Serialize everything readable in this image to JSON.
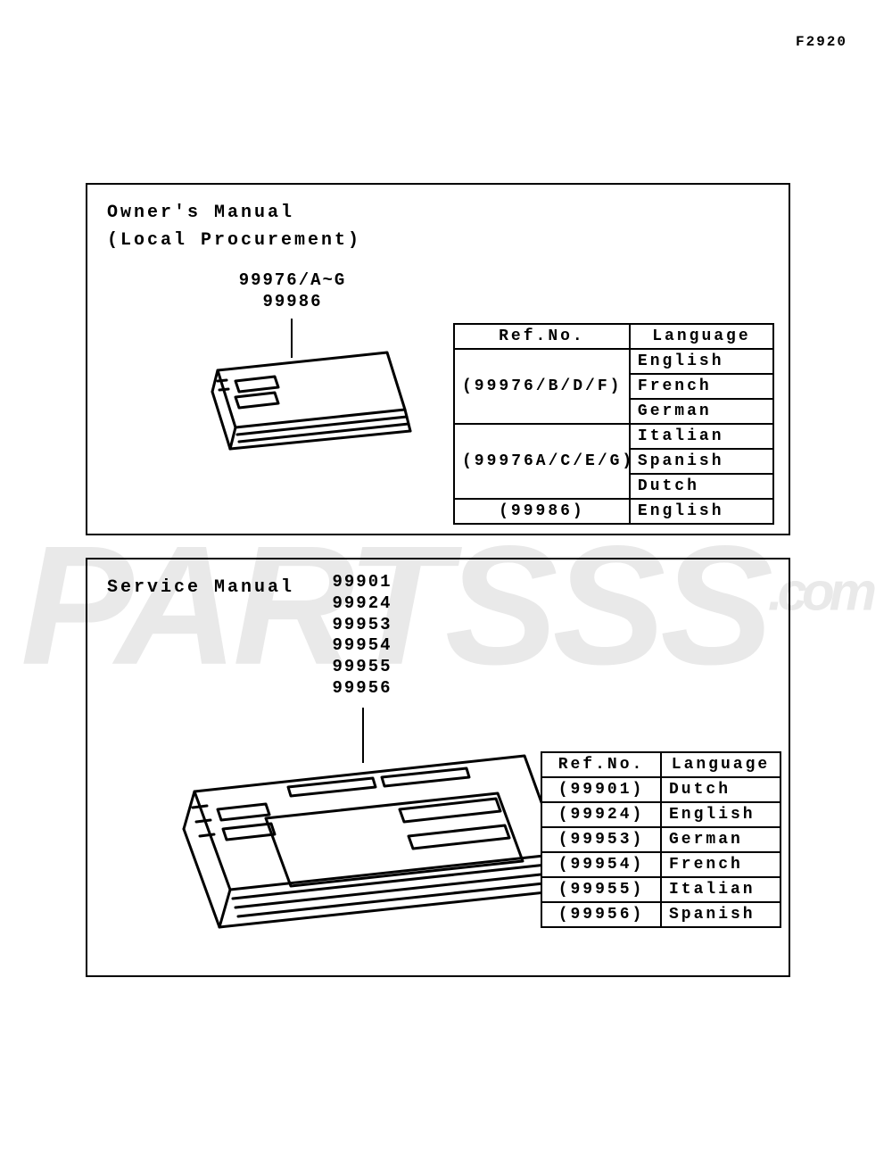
{
  "page_code": "F2920",
  "watermark_text": "PARTSSS",
  "watermark_suffix": ".com",
  "owners_panel": {
    "title": "Owner's Manual\n(Local Procurement)",
    "part_labels": [
      "99976/A~G",
      "99986"
    ],
    "table": {
      "header": {
        "ref": "Ref.No.",
        "lang": "Language"
      },
      "rows": [
        {
          "ref": "(99976/B/D/F)",
          "langs": [
            "English",
            "French",
            "German"
          ]
        },
        {
          "ref": "(99976A/C/E/G)",
          "langs": [
            "Italian",
            "Spanish",
            "Dutch"
          ]
        },
        {
          "ref": "(99986)",
          "langs": [
            "English"
          ]
        }
      ]
    }
  },
  "service_panel": {
    "title": "Service Manual",
    "part_labels": [
      "99901",
      "99924",
      "99953",
      "99954",
      "99955",
      "99956"
    ],
    "table": {
      "header": {
        "ref": "Ref.No.",
        "lang": "Language"
      },
      "rows": [
        {
          "ref": "(99901)",
          "langs": [
            "Dutch"
          ]
        },
        {
          "ref": "(99924)",
          "langs": [
            "English"
          ]
        },
        {
          "ref": "(99953)",
          "langs": [
            "German"
          ]
        },
        {
          "ref": "(99954)",
          "langs": [
            "French"
          ]
        },
        {
          "ref": "(99955)",
          "langs": [
            "Italian"
          ]
        },
        {
          "ref": "(99956)",
          "langs": [
            "Spanish"
          ]
        }
      ]
    }
  },
  "style": {
    "stroke_color": "#000000",
    "stroke_width": 2,
    "font_family": "Courier New, monospace",
    "title_fontsize": 20,
    "label_fontsize": 19,
    "cell_fontsize": 18,
    "background_color": "#ffffff",
    "watermark_color": "#e9e9e9"
  }
}
